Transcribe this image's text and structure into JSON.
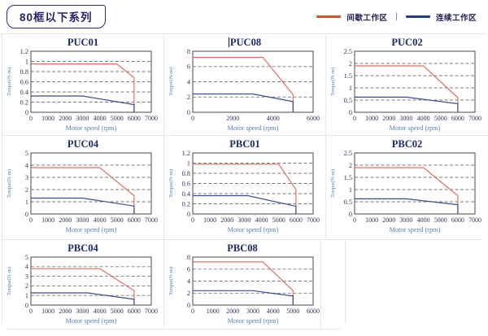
{
  "header": {
    "badge": "80框以下系列"
  },
  "legend": {
    "items": [
      {
        "label": "间歇工作区",
        "color": "#e8472b"
      },
      {
        "label": "连续工作区",
        "color": "#1f3a8f"
      }
    ],
    "separator": "|"
  },
  "colors": {
    "red_line": "#e2705f",
    "blue_line": "#3b4a94",
    "grid_dash": "#7a7a7a",
    "plot_border": "#4a4a4a",
    "tick_text": "#33335a",
    "axis_label_blue": "#4d7fc0"
  },
  "chart_data": [
    {
      "type": "line",
      "title": "PUC01",
      "cursor": false,
      "xlabel": "Motor speed (rpm)",
      "ylabel": "Torque(N-m)",
      "xlim": [
        0,
        7000
      ],
      "xticks": [
        0,
        1000,
        2000,
        3000,
        4000,
        5000,
        6000,
        7000
      ],
      "ylim": [
        0,
        1.2
      ],
      "yticks": [
        0,
        0.2,
        0.4,
        0.6,
        0.8,
        1,
        1.2
      ],
      "series": [
        {
          "name": "间歇工作区",
          "color": "red",
          "points": [
            [
              0,
              0.95
            ],
            [
              5000,
              0.95
            ],
            [
              6000,
              0.68
            ],
            [
              6000,
              0
            ]
          ]
        },
        {
          "name": "连续工作区",
          "color": "blue",
          "points": [
            [
              0,
              0.32
            ],
            [
              3000,
              0.32
            ],
            [
              6000,
              0.15
            ],
            [
              6000,
              0
            ]
          ]
        }
      ]
    },
    {
      "type": "line",
      "title": "PUC08",
      "cursor": true,
      "xlabel": "Motor speed (rpm)",
      "ylabel": "Torque(N-m)",
      "xlim": [
        0,
        6000
      ],
      "xticks": [
        0,
        2000,
        4000,
        6000
      ],
      "ylim": [
        0,
        8
      ],
      "yticks": [
        0,
        2,
        4,
        6,
        8
      ],
      "series": [
        {
          "name": "间歇工作区",
          "color": "red",
          "points": [
            [
              0,
              7.2
            ],
            [
              3500,
              7.2
            ],
            [
              5000,
              2.3
            ],
            [
              5000,
              0
            ]
          ]
        },
        {
          "name": "连续工作区",
          "color": "blue",
          "points": [
            [
              0,
              2.4
            ],
            [
              3000,
              2.4
            ],
            [
              5000,
              1.4
            ],
            [
              5000,
              0
            ]
          ]
        }
      ]
    },
    {
      "type": "line",
      "title": "PUC02",
      "cursor": false,
      "xlabel": "Motor speed (rpm)",
      "ylabel": "Torque(N-m)",
      "xlim": [
        0,
        7000
      ],
      "xticks": [
        0,
        1000,
        2000,
        3000,
        4000,
        5000,
        6000,
        7000
      ],
      "ylim": [
        0,
        2.5
      ],
      "yticks": [
        0,
        0.5,
        1,
        1.5,
        2,
        2.5
      ],
      "series": [
        {
          "name": "间歇工作区",
          "color": "red",
          "points": [
            [
              0,
              1.9
            ],
            [
              4000,
              1.9
            ],
            [
              6000,
              0.6
            ],
            [
              6000,
              0
            ]
          ]
        },
        {
          "name": "连续工作区",
          "color": "blue",
          "points": [
            [
              0,
              0.62
            ],
            [
              3000,
              0.62
            ],
            [
              6000,
              0.35
            ],
            [
              6000,
              0
            ]
          ]
        }
      ]
    },
    {
      "type": "line",
      "title": "PUC04",
      "cursor": false,
      "xlabel": "Motor speed (rpm)",
      "ylabel": "Torque(N-m)",
      "xlim": [
        0,
        7000
      ],
      "xticks": [
        0,
        1000,
        2000,
        3000,
        4000,
        5000,
        6000,
        7000
      ],
      "ylim": [
        0,
        5
      ],
      "yticks": [
        0,
        1,
        2,
        3,
        4,
        5
      ],
      "series": [
        {
          "name": "间歇工作区",
          "color": "red",
          "points": [
            [
              0,
              3.8
            ],
            [
              4000,
              3.8
            ],
            [
              6000,
              1.5
            ],
            [
              6000,
              0
            ]
          ]
        },
        {
          "name": "连续工作区",
          "color": "blue",
          "points": [
            [
              0,
              1.3
            ],
            [
              3000,
              1.3
            ],
            [
              6000,
              0.65
            ],
            [
              6000,
              0
            ]
          ]
        }
      ]
    },
    {
      "type": "line",
      "title": "PBC01",
      "cursor": false,
      "xlabel": "Motor speed (rpm)",
      "ylabel": "Torque(N-m)",
      "xlim": [
        0,
        7000
      ],
      "xticks": [
        0,
        1000,
        2000,
        3000,
        4000,
        5000,
        6000,
        7000
      ],
      "ylim": [
        0,
        1.2
      ],
      "yticks": [
        0,
        0.2,
        0.4,
        0.6,
        0.8,
        1,
        1.2
      ],
      "series": [
        {
          "name": "间歇工作区",
          "color": "red",
          "points": [
            [
              0,
              0.98
            ],
            [
              5000,
              0.98
            ],
            [
              6000,
              0.48
            ],
            [
              6000,
              0
            ]
          ]
        },
        {
          "name": "连续工作区",
          "color": "blue",
          "points": [
            [
              0,
              0.36
            ],
            [
              3200,
              0.36
            ],
            [
              6000,
              0.15
            ],
            [
              6000,
              0
            ]
          ]
        }
      ]
    },
    {
      "type": "line",
      "title": "PBC02",
      "cursor": false,
      "xlabel": "Motor speed (rpm)",
      "ylabel": "Torque(N-m)",
      "xlim": [
        0,
        7000
      ],
      "xticks": [
        0,
        1000,
        2000,
        3000,
        4000,
        5000,
        6000,
        7000
      ],
      "ylim": [
        0,
        2.5
      ],
      "yticks": [
        0,
        0.5,
        1,
        1.5,
        2,
        2.5
      ],
      "series": [
        {
          "name": "间歇工作区",
          "color": "red",
          "points": [
            [
              0,
              1.9
            ],
            [
              4000,
              1.9
            ],
            [
              6000,
              0.75
            ],
            [
              6000,
              0
            ]
          ]
        },
        {
          "name": "连续工作区",
          "color": "blue",
          "points": [
            [
              0,
              0.62
            ],
            [
              3000,
              0.62
            ],
            [
              6000,
              0.38
            ],
            [
              6000,
              0
            ]
          ]
        }
      ]
    },
    {
      "type": "line",
      "title": "PBC04",
      "cursor": false,
      "xlabel": "Motor speed (rpm)",
      "ylabel": "Torque(N-m)",
      "xlim": [
        0,
        7000
      ],
      "xticks": [
        0,
        1000,
        2000,
        3000,
        4000,
        5000,
        6000,
        7000
      ],
      "ylim": [
        0,
        5
      ],
      "yticks": [
        0,
        1,
        2,
        3,
        4,
        5
      ],
      "series": [
        {
          "name": "间歇工作区",
          "color": "red",
          "points": [
            [
              0,
              3.8
            ],
            [
              4000,
              3.8
            ],
            [
              6000,
              1.5
            ],
            [
              6000,
              0
            ]
          ]
        },
        {
          "name": "连续工作区",
          "color": "blue",
          "points": [
            [
              0,
              1.27
            ],
            [
              3300,
              1.27
            ],
            [
              6000,
              0.6
            ],
            [
              6000,
              0
            ]
          ]
        }
      ]
    },
    {
      "type": "line",
      "title": "PBC08",
      "cursor": false,
      "xlabel": "Motor speed (rpm)",
      "ylabel": "Torque(N-m)",
      "xlim": [
        0,
        6000
      ],
      "xticks": [
        0,
        1000,
        2000,
        3000,
        4000,
        5000,
        6000
      ],
      "ylim": [
        0,
        8
      ],
      "yticks": [
        0,
        2,
        4,
        6,
        8
      ],
      "series": [
        {
          "name": "间歇工作区",
          "color": "red",
          "points": [
            [
              0,
              7.2
            ],
            [
              3500,
              7.2
            ],
            [
              5000,
              2.4
            ],
            [
              5000,
              0
            ]
          ]
        },
        {
          "name": "连续工作区",
          "color": "blue",
          "points": [
            [
              0,
              2.4
            ],
            [
              3000,
              2.4
            ],
            [
              5000,
              1.5
            ],
            [
              5000,
              0
            ]
          ]
        }
      ]
    }
  ]
}
